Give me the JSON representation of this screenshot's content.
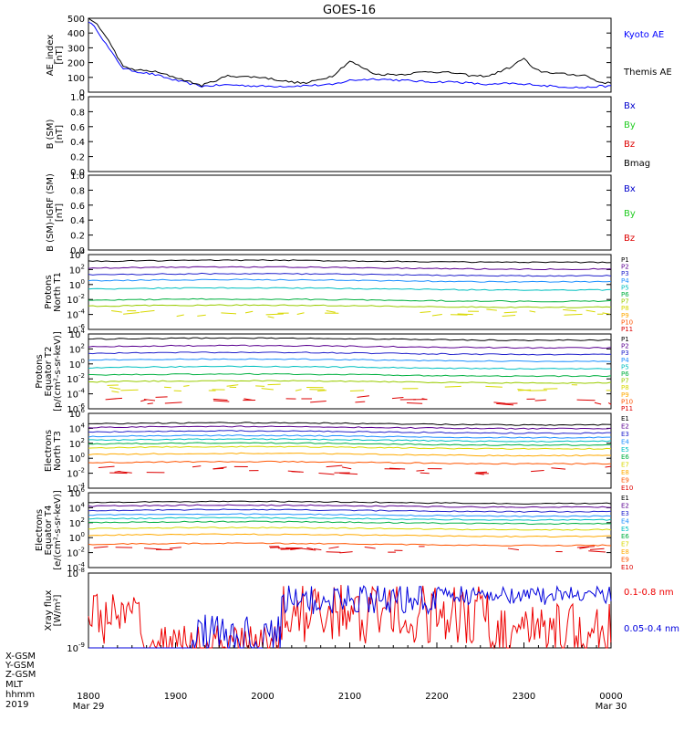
{
  "title": "GOES-16",
  "x_axis": {
    "tick_labels": [
      "1800",
      "1900",
      "2000",
      "2100",
      "2200",
      "2300",
      "0000"
    ],
    "start_date_label": "Mar 29",
    "end_date_label": "Mar 30",
    "row_labels": [
      "X-GSM",
      "Y-GSM",
      "Z-GSM",
      "MLT",
      "hhmm",
      "2019"
    ]
  },
  "chart_data": [
    {
      "id": "ae",
      "type": "line",
      "ylabel": [
        "AE_index",
        "[nT]"
      ],
      "ylim": [
        0,
        500
      ],
      "yticks": [
        "0",
        "100",
        "200",
        "300",
        "400",
        "500"
      ],
      "x_hours": [
        0,
        0.1,
        0.25,
        0.4,
        0.55,
        0.75,
        1.0,
        1.3,
        1.6,
        2.0,
        2.3,
        2.5,
        2.8,
        3.0,
        3.3,
        3.6,
        3.9,
        4.2,
        4.4,
        4.6,
        4.85,
        5.0,
        5.1,
        5.2,
        5.35,
        5.5,
        5.7,
        5.85,
        6.0
      ],
      "series": [
        {
          "name": "Kyoto AE",
          "color": "#0000ff",
          "values": [
            480,
            420,
            280,
            160,
            140,
            120,
            80,
            40,
            50,
            40,
            40,
            45,
            50,
            80,
            90,
            80,
            70,
            70,
            60,
            50,
            60,
            50,
            55,
            45,
            40,
            35,
            30,
            40,
            40
          ]
        },
        {
          "name": "Themis AE",
          "color": "#000000",
          "values": [
            500,
            460,
            330,
            170,
            150,
            140,
            100,
            45,
            110,
            100,
            70,
            60,
            110,
            210,
            120,
            120,
            140,
            130,
            110,
            110,
            170,
            230,
            160,
            140,
            130,
            120,
            115,
            70,
            60
          ]
        }
      ]
    },
    {
      "id": "b_sm",
      "type": "line",
      "ylabel": [
        "B (SM)",
        "[nT]"
      ],
      "ylim": [
        0,
        1
      ],
      "yticks": [
        "0.0",
        "0.2",
        "0.4",
        "0.6",
        "0.8",
        "1.0"
      ],
      "series": [
        {
          "name": "Bx",
          "color": "#0000cc",
          "values": []
        },
        {
          "name": "By",
          "color": "#22cc22",
          "values": []
        },
        {
          "name": "Bz",
          "color": "#dd0000",
          "values": []
        },
        {
          "name": "Bmag",
          "color": "#000000",
          "values": []
        }
      ]
    },
    {
      "id": "b_igrf",
      "type": "line",
      "ylabel": [
        "B (SM)-IGRF (SM)",
        "[nT]"
      ],
      "ylim": [
        0,
        1
      ],
      "yticks": [
        "0.0",
        "0.2",
        "0.4",
        "0.6",
        "0.8",
        "1.0"
      ],
      "series": [
        {
          "name": "Bx",
          "color": "#0000cc",
          "values": []
        },
        {
          "name": "By",
          "color": "#22cc22",
          "values": []
        },
        {
          "name": "Bz",
          "color": "#dd0000",
          "values": []
        }
      ]
    },
    {
      "id": "protons_t1",
      "type": "line",
      "log": true,
      "ylabel": [
        "Protons",
        "North T1"
      ],
      "ylim_exp": [
        -6,
        4
      ],
      "yticks_exp": [
        4,
        2,
        0,
        -2,
        -4,
        -6
      ],
      "series": [
        {
          "name": "P1",
          "color": "#000000",
          "level_exp": 3.1
        },
        {
          "name": "P2",
          "color": "#5a0090",
          "level_exp": 2.2
        },
        {
          "name": "P3",
          "color": "#2222cc",
          "level_exp": 1.3
        },
        {
          "name": "P4",
          "color": "#1e90ff",
          "level_exp": 0.5
        },
        {
          "name": "P5",
          "color": "#00c0c0",
          "level_exp": -0.6
        },
        {
          "name": "P6",
          "color": "#00b040",
          "level_exp": -2.1
        },
        {
          "name": "P7",
          "color": "#99cc00",
          "level_exp": -2.9
        },
        {
          "name": "P8",
          "color": "#d8d800",
          "level_exp": -3.8
        },
        {
          "name": "P9",
          "color": "#ffaa00",
          "level_exp": -9
        },
        {
          "name": "P10",
          "color": "#ff5500",
          "level_exp": -9
        },
        {
          "name": "P11",
          "color": "#dd0000",
          "level_exp": -9
        }
      ]
    },
    {
      "id": "protons_t2",
      "type": "line",
      "log": true,
      "ylabel": [
        "Protons",
        "Equator T2",
        "[p/(cm²-s-sr-keV)]"
      ],
      "ylim_exp": [
        -6,
        4
      ],
      "yticks_exp": [
        4,
        2,
        0,
        -2,
        -4,
        -6
      ],
      "series": [
        {
          "name": "P1",
          "color": "#000000",
          "level_exp": 3.3
        },
        {
          "name": "P2",
          "color": "#5a0090",
          "level_exp": 2.3
        },
        {
          "name": "P3",
          "color": "#2222cc",
          "level_exp": 1.4
        },
        {
          "name": "P4",
          "color": "#1e90ff",
          "level_exp": 0.5
        },
        {
          "name": "P5",
          "color": "#00c0c0",
          "level_exp": -0.5
        },
        {
          "name": "P6",
          "color": "#00b040",
          "level_exp": -1.5
        },
        {
          "name": "P7",
          "color": "#99cc00",
          "level_exp": -2.4
        },
        {
          "name": "P8",
          "color": "#d8d800",
          "level_exp": -3.2
        },
        {
          "name": "P9",
          "color": "#ffaa00",
          "level_exp": -9
        },
        {
          "name": "P10",
          "color": "#ff5500",
          "level_exp": -9
        },
        {
          "name": "P11",
          "color": "#dd0000",
          "level_exp": -4.9
        }
      ]
    },
    {
      "id": "electrons_t3",
      "type": "line",
      "log": true,
      "ylabel": [
        "Electrons",
        "North T3"
      ],
      "ylim_exp": [
        -4,
        6
      ],
      "yticks_exp": [
        6,
        4,
        2,
        0,
        -2,
        -4
      ],
      "series": [
        {
          "name": "E1",
          "color": "#000000",
          "level_exp": 4.6
        },
        {
          "name": "E2",
          "color": "#5a0090",
          "level_exp": 4.1
        },
        {
          "name": "E3",
          "color": "#2222cc",
          "level_exp": 3.5
        },
        {
          "name": "E4",
          "color": "#1e90ff",
          "level_exp": 2.9
        },
        {
          "name": "E5",
          "color": "#00c0c0",
          "level_exp": 2.4
        },
        {
          "name": "E6",
          "color": "#00b040",
          "level_exp": 1.9
        },
        {
          "name": "E7",
          "color": "#d8d800",
          "level_exp": 1.4
        },
        {
          "name": "E8",
          "color": "#ffaa00",
          "level_exp": 0.5
        },
        {
          "name": "E9",
          "color": "#ff5500",
          "level_exp": -0.6
        },
        {
          "name": "E10",
          "color": "#dd0000",
          "level_exp": -1.6
        }
      ]
    },
    {
      "id": "electrons_t4",
      "type": "line",
      "log": true,
      "ylabel": [
        "Electrons",
        "Equator T4",
        "[e/(cm²-s-sr-keV)]"
      ],
      "ylim_exp": [
        -4,
        6
      ],
      "yticks_exp": [
        6,
        4,
        2,
        0,
        -2,
        -4
      ],
      "series": [
        {
          "name": "E1",
          "color": "#000000",
          "level_exp": 4.7
        },
        {
          "name": "E2",
          "color": "#5a0090",
          "level_exp": 4.2
        },
        {
          "name": "E3",
          "color": "#2222cc",
          "level_exp": 3.6
        },
        {
          "name": "E4",
          "color": "#1e90ff",
          "level_exp": 3.0
        },
        {
          "name": "E5",
          "color": "#00c0c0",
          "level_exp": 2.5
        },
        {
          "name": "E6",
          "color": "#00b040",
          "level_exp": 2.0
        },
        {
          "name": "E7",
          "color": "#d8d800",
          "level_exp": 1.2
        },
        {
          "name": "E8",
          "color": "#ffaa00",
          "level_exp": 0.3
        },
        {
          "name": "E9",
          "color": "#ff5500",
          "level_exp": -0.9
        },
        {
          "name": "E10",
          "color": "#dd0000",
          "level_exp": -1.6
        }
      ]
    },
    {
      "id": "xray",
      "type": "line",
      "log": true,
      "ylabel": [
        "Xray flux",
        "[W/m²]"
      ],
      "ylim_exp": [
        -9,
        -8
      ],
      "yticks_exp": [
        -8,
        -9
      ],
      "series": [
        {
          "name": "0.1-0.8 nm",
          "color": "#ee0000"
        },
        {
          "name": "0.05-0.4 nm",
          "color": "#0000dd"
        }
      ]
    }
  ]
}
